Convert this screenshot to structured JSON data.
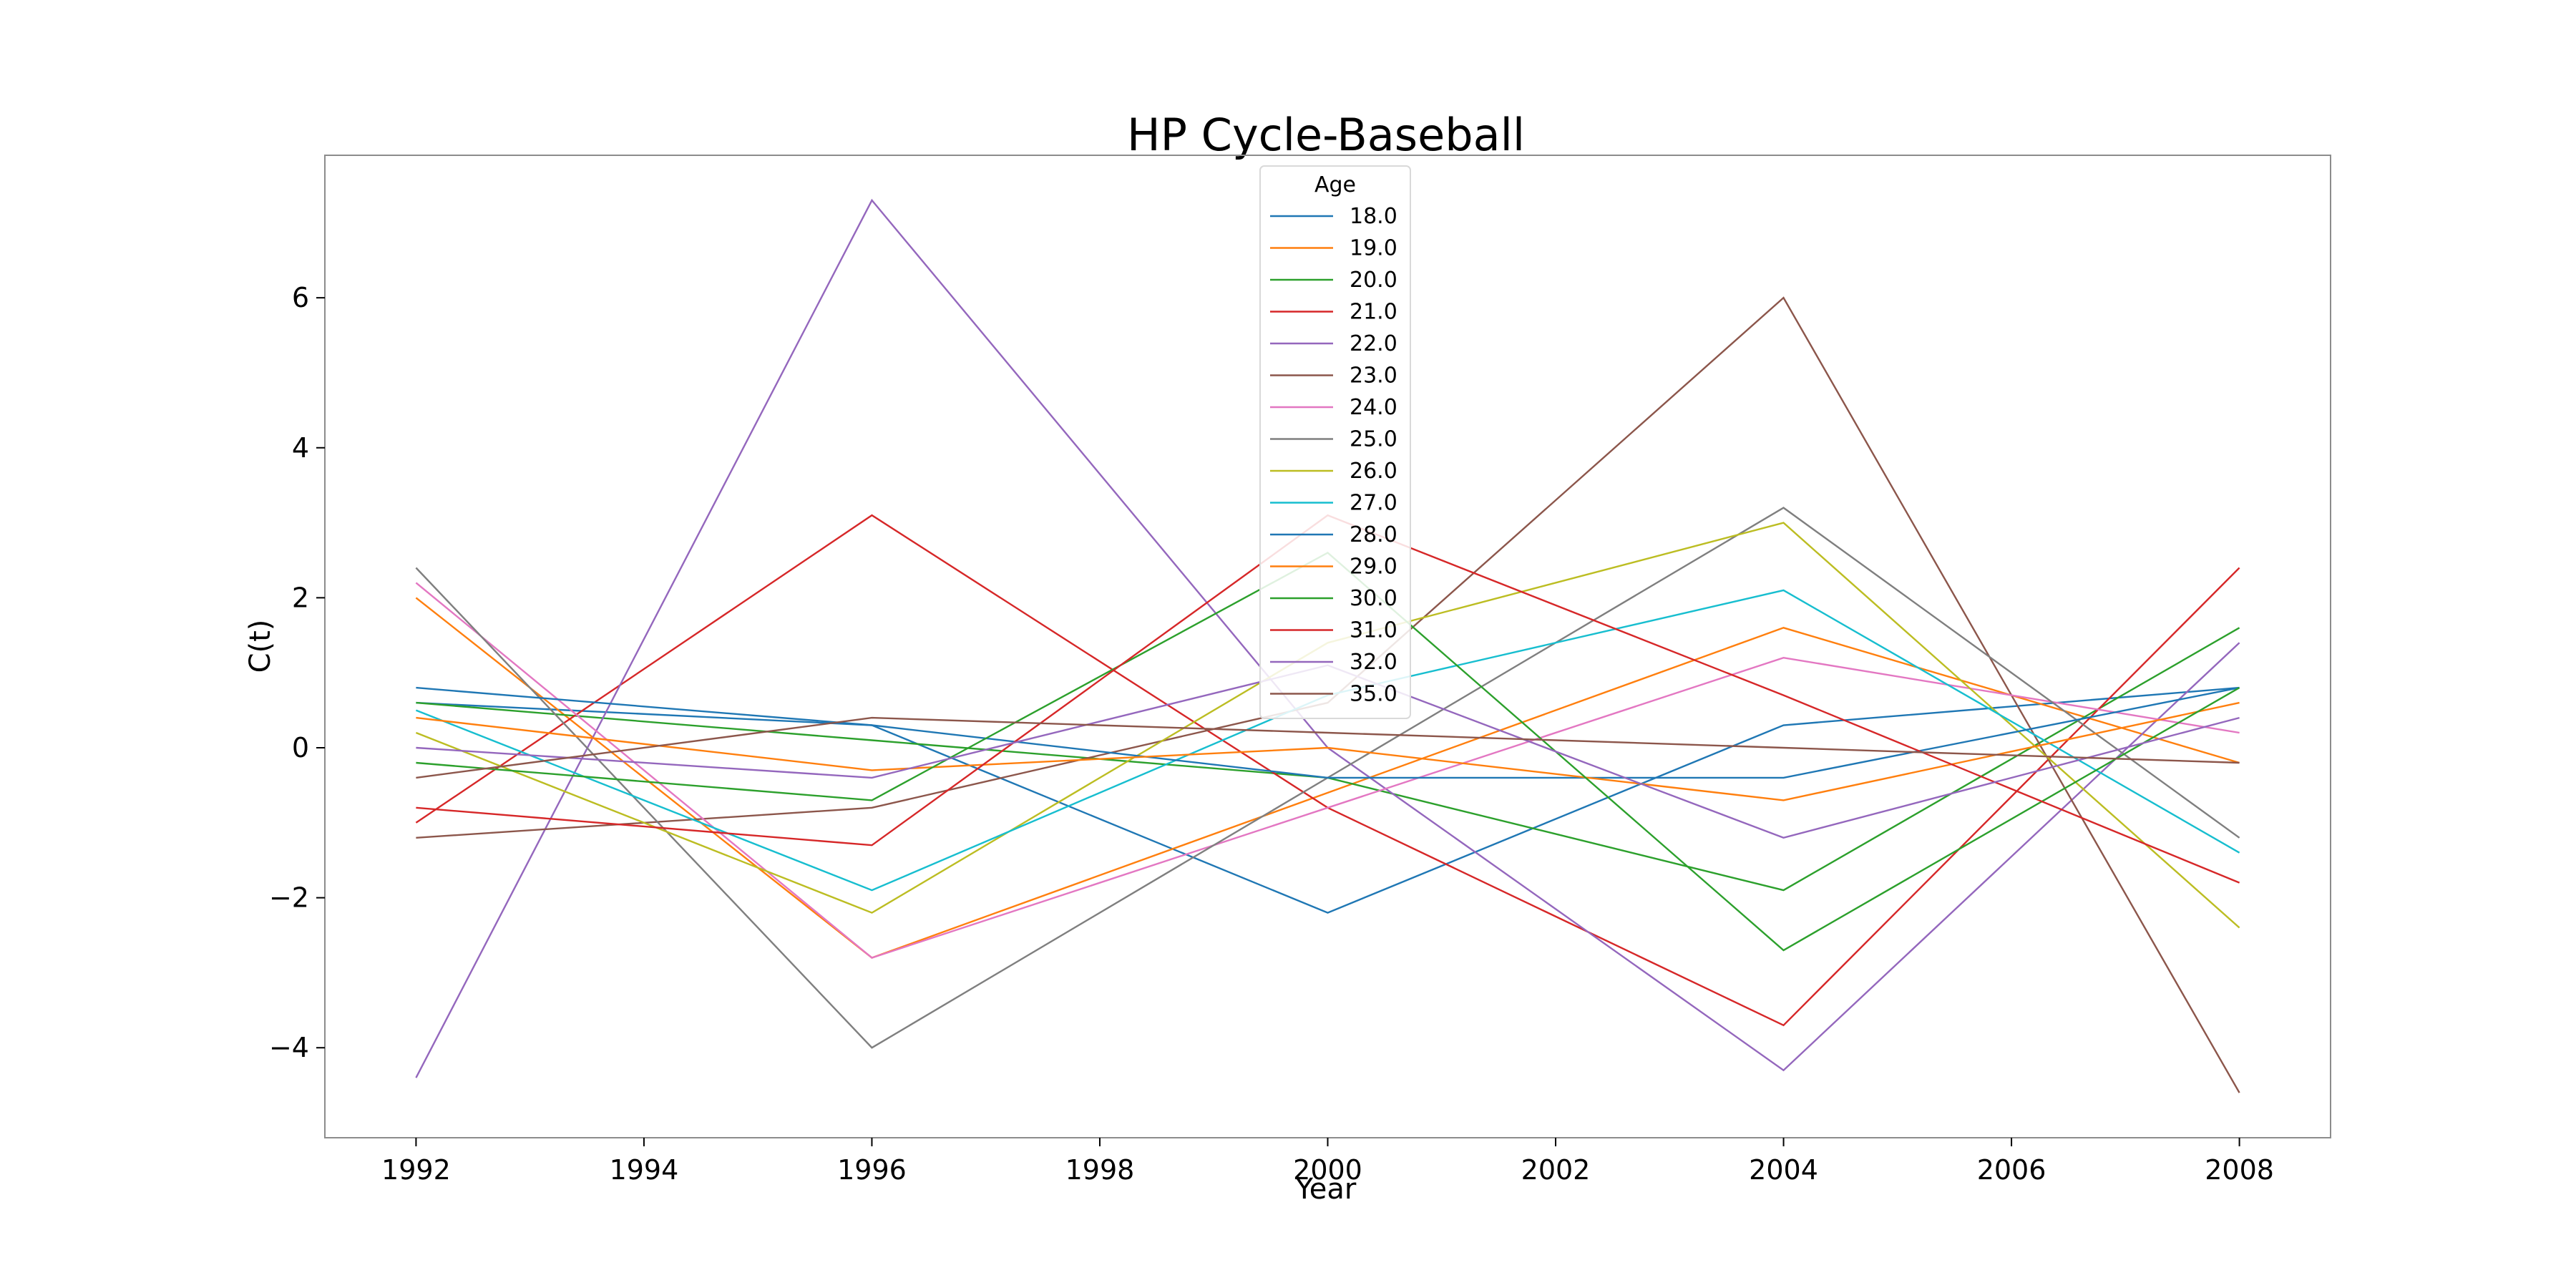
{
  "chart_data": {
    "type": "line",
    "title": "HP Cycle-Baseball",
    "xlabel": "Year",
    "ylabel": "C(t)",
    "x": [
      1992,
      1996,
      2000,
      2004,
      2008
    ],
    "xticks": [
      1992,
      1994,
      1996,
      1998,
      2000,
      2002,
      2004,
      2006,
      2008
    ],
    "yticks": [
      -4,
      -2,
      0,
      2,
      4,
      6
    ],
    "xlim": [
      1991.2,
      2008.8
    ],
    "ylim": [
      -5.2,
      7.9
    ],
    "grid": false,
    "legend": {
      "title": "Age",
      "placement": "top-center"
    },
    "series": [
      {
        "name": "18.0",
        "color": "#1f77b4",
        "values": [
          0.6,
          0.3,
          -2.2,
          0.3,
          0.8
        ]
      },
      {
        "name": "19.0",
        "color": "#ff7f0e",
        "values": [
          2.0,
          -2.8,
          -0.6,
          1.6,
          -0.2
        ]
      },
      {
        "name": "20.0",
        "color": "#2ca02c",
        "values": [
          0.6,
          0.1,
          -0.4,
          -1.9,
          1.6
        ]
      },
      {
        "name": "21.0",
        "color": "#d62728",
        "values": [
          -1.0,
          3.1,
          -0.8,
          -3.7,
          2.4
        ]
      },
      {
        "name": "22.0",
        "color": "#9467bd",
        "values": [
          -4.4,
          7.3,
          0.0,
          -4.3,
          1.4
        ]
      },
      {
        "name": "23.0",
        "color": "#8c564b",
        "values": [
          -1.2,
          -0.8,
          0.6,
          6.0,
          -4.6
        ]
      },
      {
        "name": "24.0",
        "color": "#e377c2",
        "values": [
          2.2,
          -2.8,
          -0.8,
          1.2,
          0.2
        ]
      },
      {
        "name": "25.0",
        "color": "#7f7f7f",
        "values": [
          2.4,
          -4.0,
          -0.4,
          3.2,
          -1.2
        ]
      },
      {
        "name": "26.0",
        "color": "#bcbd22",
        "values": [
          0.2,
          -2.2,
          1.4,
          3.0,
          -2.4
        ]
      },
      {
        "name": "27.0",
        "color": "#17becf",
        "values": [
          0.5,
          -1.9,
          0.7,
          2.1,
          -1.4
        ]
      },
      {
        "name": "28.0",
        "color": "#1f77b4",
        "values": [
          0.8,
          0.3,
          -0.4,
          -0.4,
          0.8
        ]
      },
      {
        "name": "29.0",
        "color": "#ff7f0e",
        "values": [
          0.4,
          -0.3,
          0.0,
          -0.7,
          0.6
        ]
      },
      {
        "name": "30.0",
        "color": "#2ca02c",
        "values": [
          -0.2,
          -0.7,
          2.6,
          -2.7,
          0.8
        ]
      },
      {
        "name": "31.0",
        "color": "#d62728",
        "values": [
          -0.8,
          -1.3,
          3.1,
          0.7,
          -1.8
        ]
      },
      {
        "name": "32.0",
        "color": "#9467bd",
        "values": [
          0.0,
          -0.4,
          1.1,
          -1.2,
          0.4
        ]
      },
      {
        "name": "35.0",
        "color": "#8c564b",
        "values": [
          -0.4,
          0.4,
          0.2,
          0.0,
          -0.2
        ]
      }
    ]
  }
}
